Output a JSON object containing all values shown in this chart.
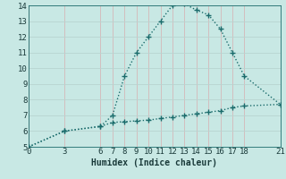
{
  "xlabel": "Humidex (Indice chaleur)",
  "bg_color": "#c8e8e4",
  "line_color": "#1a6b6b",
  "grid_color_v": "#d4b8b8",
  "grid_color_h": "#b8d4d0",
  "xlim": [
    0,
    21
  ],
  "ylim": [
    5,
    14
  ],
  "xticks": [
    0,
    3,
    6,
    7,
    8,
    9,
    10,
    11,
    12,
    13,
    14,
    15,
    16,
    17,
    18,
    21
  ],
  "yticks": [
    5,
    6,
    7,
    8,
    9,
    10,
    11,
    12,
    13,
    14
  ],
  "curve1_x": [
    0,
    3,
    6,
    7,
    8,
    9,
    10,
    11,
    12,
    13,
    14,
    15,
    16,
    17,
    18,
    21
  ],
  "curve1_y": [
    5.0,
    6.0,
    6.3,
    7.0,
    9.5,
    11.0,
    12.0,
    13.0,
    14.0,
    14.1,
    13.7,
    13.4,
    12.5,
    11.0,
    9.5,
    7.7
  ],
  "curve2_x": [
    0,
    3,
    6,
    7,
    8,
    9,
    10,
    11,
    12,
    13,
    14,
    15,
    16,
    17,
    18,
    21
  ],
  "curve2_y": [
    5.0,
    6.0,
    6.3,
    6.55,
    6.6,
    6.65,
    6.7,
    6.8,
    6.9,
    7.0,
    7.1,
    7.2,
    7.3,
    7.5,
    7.6,
    7.7
  ],
  "markersize": 4,
  "linewidth": 1.0,
  "fontsize_label": 7,
  "fontsize_tick": 6.5
}
